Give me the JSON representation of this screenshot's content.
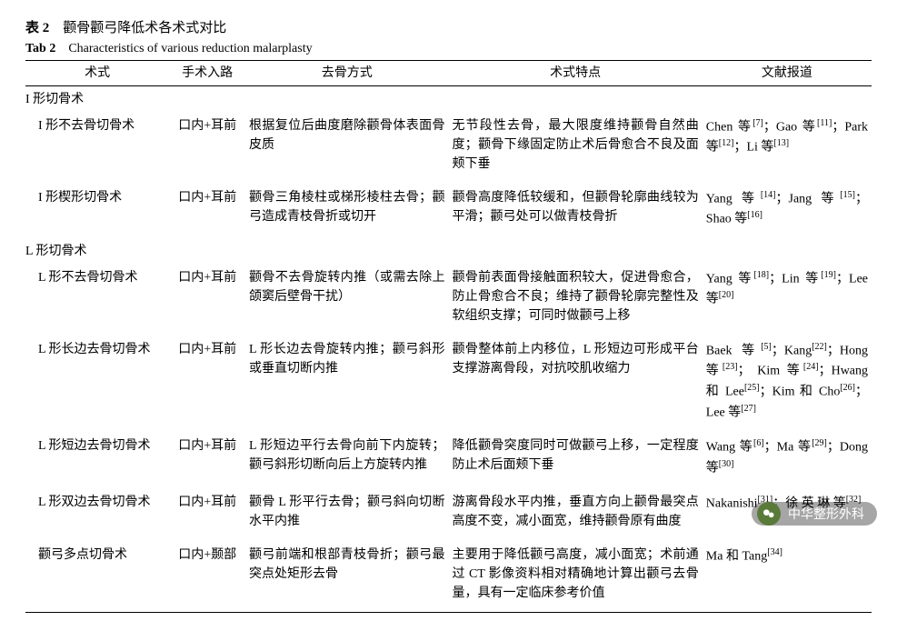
{
  "title": {
    "label_cn_bold": "表 2",
    "label_cn_rest": "颧骨颧弓降低术各术式对比",
    "label_en_bold": "Tab 2",
    "label_en_rest": "Characteristics of various reduction malarplasty"
  },
  "table": {
    "columns": [
      {
        "key": "technique",
        "label": "术式",
        "width": "17%"
      },
      {
        "key": "approach",
        "label": "手术入路",
        "width": "9%"
      },
      {
        "key": "method",
        "label": "去骨方式",
        "width": "24%"
      },
      {
        "key": "features",
        "label": "术式特点",
        "width": "30%"
      },
      {
        "key": "refs",
        "label": "文献报道",
        "width": "20%"
      }
    ],
    "sections": [
      {
        "heading": "I 形切骨术",
        "rows": [
          {
            "technique": "I 形不去骨切骨术",
            "approach": "口内+耳前",
            "method": "根据复位后曲度磨除颧骨体表面骨皮质",
            "features": "无节段性去骨，最大限度维持颧骨自然曲度；颧骨下缘固定防止术后骨愈合不良及面颊下垂",
            "refs": "Chen 等<sup>[7]</sup>；Gao 等<sup>[11]</sup>；Park 等<sup>[12]</sup>；Li 等<sup>[13]</sup>"
          },
          {
            "technique": "I 形楔形切骨术",
            "approach": "口内+耳前",
            "method": "颧骨三角棱柱或梯形棱柱去骨；颧弓造成青枝骨折或切开",
            "features": "颧骨高度降低较缓和，但颧骨轮廓曲线较为平滑；颧弓处可以做青枝骨折",
            "refs": "Yang 等<sup>[14]</sup>；Jang 等<sup>[15]</sup>；Shao 等<sup>[16]</sup>"
          }
        ]
      },
      {
        "heading": "L 形切骨术",
        "rows": [
          {
            "technique": "L 形不去骨切骨术",
            "approach": "口内+耳前",
            "method": "颧骨不去骨旋转内推（或需去除上颌窦后壁骨干扰）",
            "features": "颧骨前表面骨接触面积较大，促进骨愈合，防止骨愈合不良；维持了颧骨轮廓完整性及软组织支撑；可同时做颧弓上移",
            "refs": "Yang 等<sup>[18]</sup>；Lin 等<sup>[19]</sup>；Lee 等<sup>[20]</sup>"
          },
          {
            "technique": "L 形长边去骨切骨术",
            "approach": "口内+耳前",
            "method": "L 形长边去骨旋转内推；颧弓斜形或垂直切断内推",
            "features": "颧骨整体前上内移位，L 形短边可形成平台支撑游离骨段，对抗咬肌收缩力",
            "refs": "Baek 等<sup>[5]</sup>；Kang<sup>[22]</sup>；Hong 等<sup>[23]</sup>； Kim 等<sup>[24]</sup>；Hwang 和 Lee<sup>[25]</sup>；Kim 和 Cho<sup>[26]</sup>；Lee 等<sup>[27]</sup>"
          },
          {
            "technique": "L 形短边去骨切骨术",
            "approach": "口内+耳前",
            "method": "L 形短边平行去骨向前下内旋转；颧弓斜形切断向后上方旋转内推",
            "features": "降低颧骨突度同时可做颧弓上移，一定程度防止术后面颊下垂",
            "refs": "Wang 等<sup>[6]</sup>；Ma 等<sup>[29]</sup>；Dong 等<sup>[30]</sup>"
          },
          {
            "technique": "L 形双边去骨切骨术",
            "approach": "口内+耳前",
            "method": "颧骨 L 形平行去骨；颧弓斜向切断水平内推",
            "features": "游离骨段水平内推，垂直方向上颧骨最突点高度不变，减小面宽，维持颧骨原有曲度",
            "refs": "Nakanishi<sup>[31]</sup>；徐 英 琳 等<sup>[32]</sup>"
          }
        ]
      },
      {
        "heading": null,
        "rows": [
          {
            "technique": "颧弓多点切骨术",
            "approach": "口内+颞部",
            "method": "颧弓前端和根部青枝骨折；颧弓最突点处矩形去骨",
            "features": "主要用于降低颧弓高度，减小面宽；术前通过 CT 影像资料相对精确地计算出颧弓去骨量，具有一定临床参考价值",
            "refs": "Ma 和 Tang<sup>[34]</sup>"
          }
        ]
      }
    ]
  },
  "watermark": {
    "text": "中华整形外科"
  }
}
